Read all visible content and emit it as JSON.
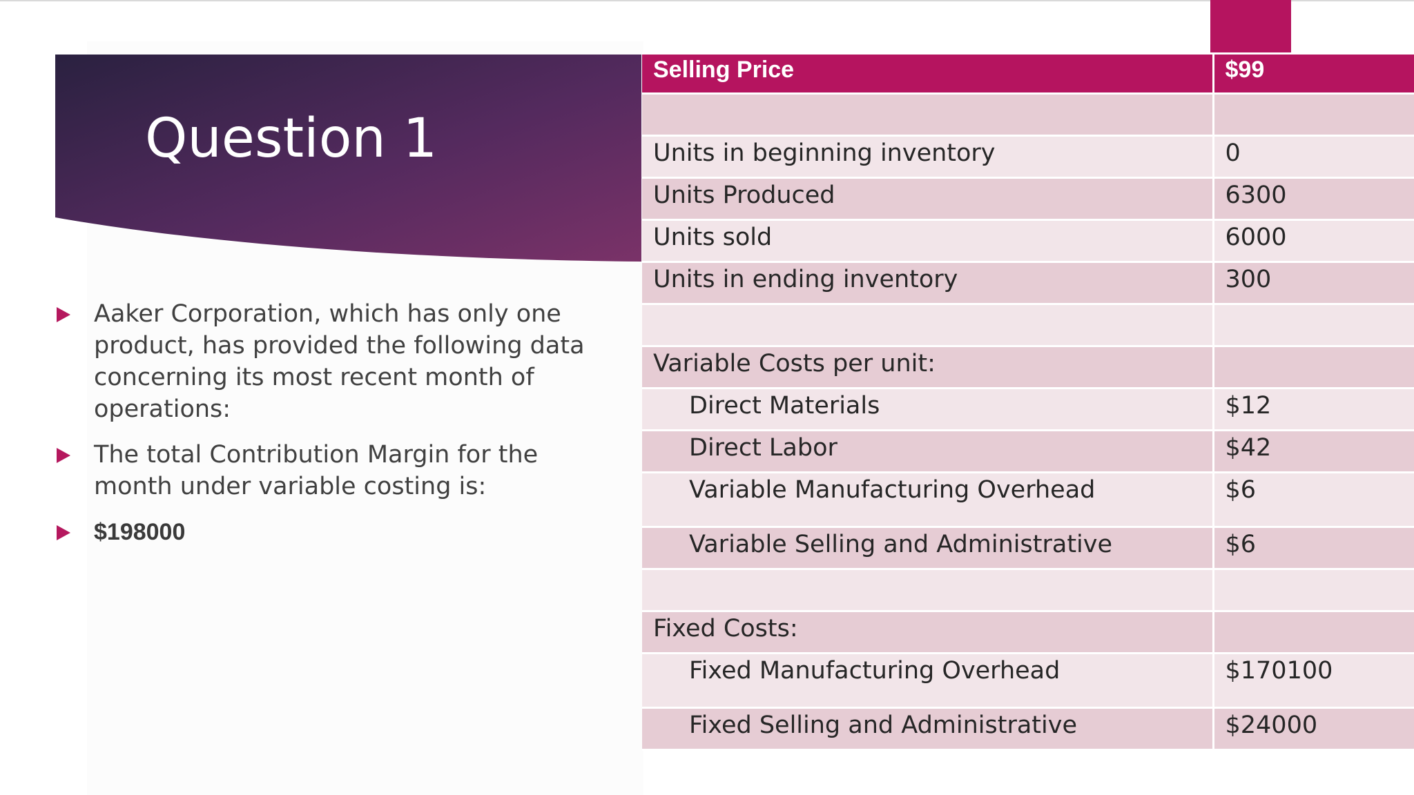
{
  "slide": {
    "title": "Question 1",
    "accent_color": "#b5145f",
    "title_band_colors": [
      "#2a2140",
      "#5a2a5e",
      "#7a3268"
    ]
  },
  "bullets": [
    {
      "text": "Aaker Corporation, which has only one product, has provided the following data concerning its most recent month of operations:"
    },
    {
      "text": "The total Contribution Margin for the month under variable costing is:"
    },
    {
      "text": "$198000"
    }
  ],
  "table": {
    "header": {
      "label": "Selling Price",
      "value": "$99"
    },
    "rows": [
      {
        "label": "",
        "value": ""
      },
      {
        "label": "Units in beginning inventory",
        "value": "0"
      },
      {
        "label": "Units Produced",
        "value": "6300"
      },
      {
        "label": "Units sold",
        "value": "6000"
      },
      {
        "label": "Units in ending inventory",
        "value": "300"
      },
      {
        "label": "",
        "value": ""
      },
      {
        "label": "Variable Costs per unit:",
        "value": ""
      },
      {
        "label": "Direct Materials",
        "value": "$12"
      },
      {
        "label": "Direct Labor",
        "value": "$42"
      },
      {
        "label": "Variable Manufacturing Overhead",
        "value": "$6"
      },
      {
        "label": "Variable Selling and Administrative",
        "value": "$6"
      },
      {
        "label": "",
        "value": ""
      },
      {
        "label": "Fixed Costs:",
        "value": ""
      },
      {
        "label": "Fixed Manufacturing Overhead",
        "value": "$170100"
      },
      {
        "label": "Fixed Selling and Administrative",
        "value": "$24000"
      }
    ]
  }
}
